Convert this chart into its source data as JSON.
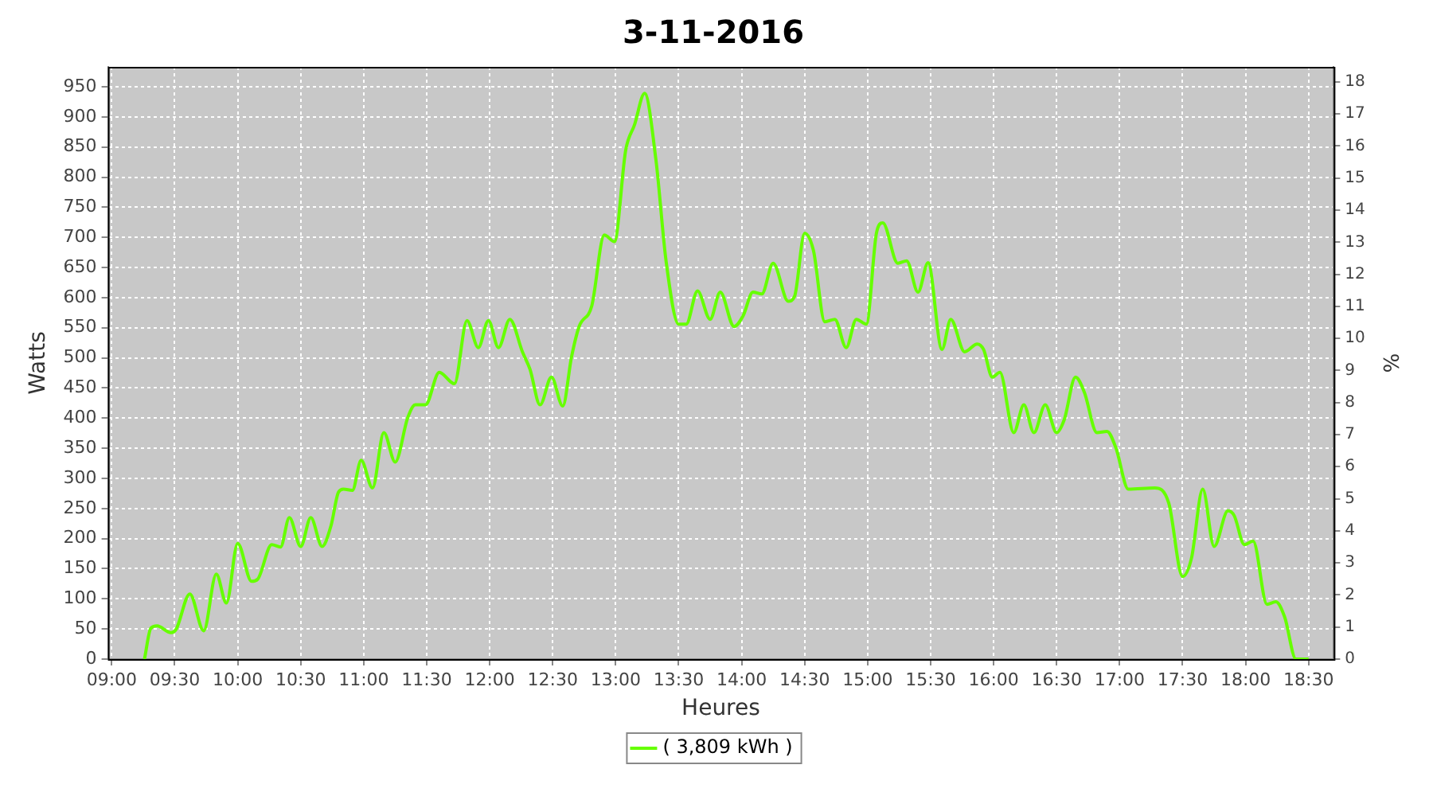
{
  "chart_data": {
    "type": "line",
    "title": "3-11-2016",
    "xlabel": "Heures",
    "ylabel": "Watts",
    "y2label": "%",
    "xlim": [
      8.97,
      18.7
    ],
    "ylim": [
      0,
      983
    ],
    "y2lim": [
      0,
      18.47
    ],
    "xticks": [
      {
        "value": 9,
        "label": "09:00"
      },
      {
        "value": 9.5,
        "label": "09:30"
      },
      {
        "value": 10,
        "label": "10:00"
      },
      {
        "value": 10.5,
        "label": "10:30"
      },
      {
        "value": 11,
        "label": "11:00"
      },
      {
        "value": 11.5,
        "label": "11:30"
      },
      {
        "value": 12,
        "label": "12:00"
      },
      {
        "value": 12.5,
        "label": "12:30"
      },
      {
        "value": 13,
        "label": "13:00"
      },
      {
        "value": 13.5,
        "label": "13:30"
      },
      {
        "value": 14,
        "label": "14:00"
      },
      {
        "value": 14.5,
        "label": "14:30"
      },
      {
        "value": 15,
        "label": "15:00"
      },
      {
        "value": 15.5,
        "label": "15:30"
      },
      {
        "value": 16,
        "label": "16:00"
      },
      {
        "value": 16.5,
        "label": "16:30"
      },
      {
        "value": 17,
        "label": "17:00"
      },
      {
        "value": 17.5,
        "label": "17:30"
      },
      {
        "value": 18,
        "label": "18:00"
      },
      {
        "value": 18.5,
        "label": "18:30"
      }
    ],
    "yticks": [
      0,
      50,
      100,
      150,
      200,
      250,
      300,
      350,
      400,
      450,
      500,
      550,
      600,
      650,
      700,
      750,
      800,
      850,
      900,
      950
    ],
    "y2ticks": [
      0,
      1,
      2,
      3,
      4,
      5,
      6,
      7,
      8,
      9,
      10,
      11,
      12,
      13,
      14,
      15,
      16,
      17,
      18
    ],
    "grid": true,
    "legend": "bottom",
    "marker": "none",
    "line_style": "solid",
    "series": [
      {
        "name": "( 3,809 kWh )",
        "color": "#66ff00",
        "x": [
          9.26,
          9.31,
          9.36,
          9.47,
          9.51,
          9.62,
          9.73,
          9.83,
          9.91,
          10.0,
          10.11,
          10.16,
          10.27,
          10.34,
          10.41,
          10.5,
          10.58,
          10.67,
          10.74,
          10.8,
          10.84,
          10.91,
          10.98,
          11.07,
          11.16,
          11.25,
          11.35,
          11.41,
          11.49,
          11.6,
          11.72,
          11.82,
          11.91,
          11.99,
          12.07,
          12.16,
          12.26,
          12.32,
          12.4,
          12.49,
          12.58,
          12.65,
          12.71,
          12.81,
          12.91,
          12.99,
          13.08,
          13.15,
          13.23,
          13.32,
          13.4,
          13.5,
          13.56,
          13.65,
          13.75,
          13.83,
          13.94,
          14.01,
          14.09,
          14.16,
          14.25,
          14.37,
          14.42,
          14.5,
          14.57,
          14.66,
          14.74,
          14.83,
          14.91,
          14.99,
          15.07,
          15.12,
          15.24,
          15.31,
          15.4,
          15.48,
          15.59,
          15.66,
          15.77,
          15.87,
          15.92,
          15.99,
          16.05,
          16.16,
          16.24,
          16.32,
          16.41,
          16.5,
          16.56,
          16.65,
          16.72,
          16.82,
          16.9,
          16.97,
          17.07,
          17.28,
          17.39,
          17.5,
          17.57,
          17.66,
          17.75,
          17.86,
          17.91,
          17.99,
          18.06,
          18.17,
          18.24,
          18.31,
          18.4,
          18.5
        ],
        "values": [
          0,
          51,
          55,
          44,
          49,
          108,
          47,
          141,
          93,
          192,
          129,
          133,
          190,
          186,
          235,
          187,
          235,
          187,
          221,
          277,
          282,
          280,
          330,
          284,
          376,
          327,
          401,
          422,
          422,
          476,
          457,
          562,
          517,
          562,
          517,
          564,
          510,
          481,
          422,
          468,
          420,
          502,
          552,
          586,
          704,
          693,
          845,
          887,
          939,
          828,
          661,
          556,
          556,
          611,
          564,
          609,
          552,
          569,
          609,
          606,
          657,
          594,
          602,
          707,
          678,
          560,
          564,
          517,
          564,
          556,
          707,
          724,
          657,
          661,
          609,
          658,
          514,
          564,
          510,
          523,
          514,
          468,
          476,
          376,
          422,
          376,
          422,
          376,
          397,
          468,
          443,
          376,
          378,
          351,
          282,
          284,
          259,
          137,
          167,
          282,
          187,
          246,
          238,
          190,
          196,
          91,
          95,
          70,
          0,
          0
        ]
      }
    ]
  }
}
